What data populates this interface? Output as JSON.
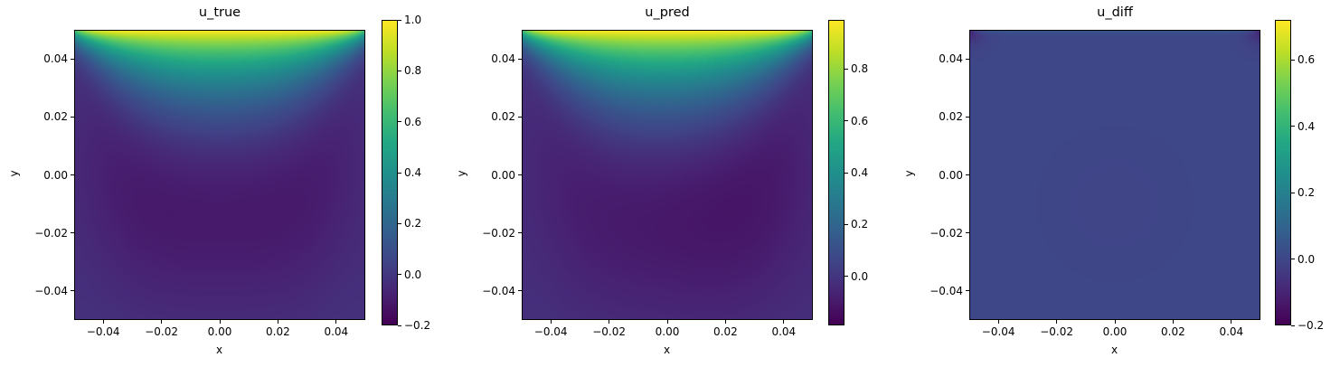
{
  "chart_data": [
    {
      "type": "heatmap",
      "title": "u_true",
      "xlabel": "x",
      "ylabel": "y",
      "xlim": [
        -0.05,
        0.05
      ],
      "ylim": [
        -0.05,
        0.05
      ],
      "x_ticks": [
        "−0.04",
        "−0.02",
        "0.00",
        "0.02",
        "0.04"
      ],
      "y_ticks": [
        "0.04",
        "0.02",
        "0.00",
        "−0.02",
        "−0.04"
      ],
      "colorbar": {
        "range": [
          -0.2,
          1.0
        ],
        "ticks": [
          1.0,
          0.8,
          0.6,
          0.4,
          0.2,
          0.0,
          -0.2
        ],
        "tick_labels": [
          "1.0",
          "0.8",
          "0.6",
          "0.4",
          "0.2",
          "0.0",
          "−0.2"
        ]
      },
      "colormap": "viridis",
      "field": {
        "lid_value": 1.0,
        "vortex_min": -0.2,
        "vortex_center": [
          0.0,
          0.003
        ]
      }
    },
    {
      "type": "heatmap",
      "title": "u_pred",
      "xlabel": "x",
      "ylabel": "y",
      "xlim": [
        -0.05,
        0.05
      ],
      "ylim": [
        -0.05,
        0.05
      ],
      "x_ticks": [
        "−0.04",
        "−0.02",
        "0.00",
        "0.02",
        "0.04"
      ],
      "y_ticks": [
        "0.04",
        "0.02",
        "0.00",
        "−0.02",
        "−0.04"
      ],
      "colorbar": {
        "range": [
          -0.19,
          0.99
        ],
        "ticks": [
          0.8,
          0.6,
          0.4,
          0.2,
          0.0
        ],
        "tick_labels": [
          "0.8",
          "0.6",
          "0.4",
          "0.2",
          "0.0"
        ]
      },
      "colormap": "viridis",
      "field": {
        "lid_value": 0.99,
        "vortex_min": -0.19,
        "vortex_center": [
          0.004,
          0.0
        ]
      }
    },
    {
      "type": "heatmap",
      "title": "u_diff",
      "xlabel": "x",
      "ylabel": "y",
      "xlim": [
        -0.05,
        0.05
      ],
      "ylim": [
        -0.05,
        0.05
      ],
      "x_ticks": [
        "−0.04",
        "−0.02",
        "0.00",
        "0.02",
        "0.04"
      ],
      "y_ticks": [
        "0.04",
        "0.02",
        "0.00",
        "−0.02",
        "−0.04"
      ],
      "colorbar": {
        "range": [
          -0.2,
          0.72
        ],
        "ticks": [
          0.6,
          0.4,
          0.2,
          0.0,
          -0.2
        ],
        "tick_labels": [
          "0.6",
          "0.4",
          "0.2",
          "0.0",
          "−0.2"
        ]
      },
      "colormap": "viridis",
      "field": {
        "background": 0.0,
        "corner_value": -0.15
      }
    }
  ]
}
